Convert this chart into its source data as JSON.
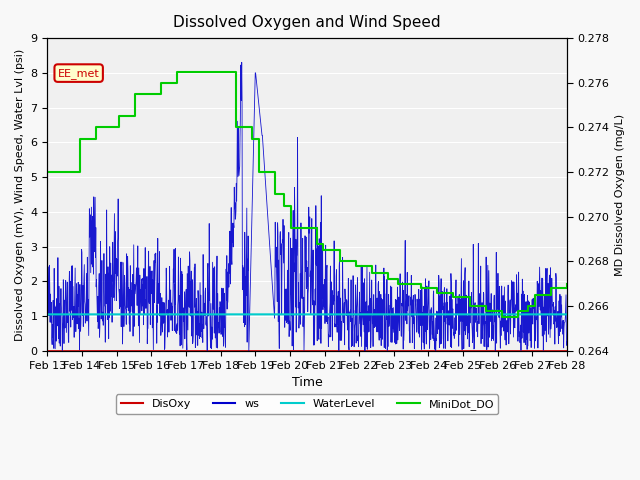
{
  "title": "Dissolved Oxygen and Wind Speed",
  "xlabel": "Time",
  "ylabel_left": "Dissolved Oxygen (mV), Wind Speed, Water Lvl (psi)",
  "ylabel_right": "MD Dissolved Oxygen (mg/L)",
  "ylim_left": [
    0.0,
    9.0
  ],
  "ylim_right": [
    0.264,
    0.278
  ],
  "x_ticks": [
    "Feb 13",
    "Feb 14",
    "Feb 15",
    "Feb 16",
    "Feb 17",
    "Feb 18",
    "Feb 19",
    "Feb 20",
    "Feb 21",
    "Feb 22",
    "Feb 23",
    "Feb 24",
    "Feb 25",
    "Feb 26",
    "Feb 27",
    "Feb 28"
  ],
  "annotation_text": "EE_met",
  "annotation_color": "#cc0000",
  "background_color": "#e8e8e8",
  "plot_bg_color": "#f0f0f0",
  "disoxy_color": "#cc0000",
  "ws_color": "#0000cc",
  "waterlevel_color": "#00cccc",
  "minidot_color": "#00cc00",
  "waterlevel_value": 1.05,
  "disoxy_value": 0.0,
  "num_days": 16
}
